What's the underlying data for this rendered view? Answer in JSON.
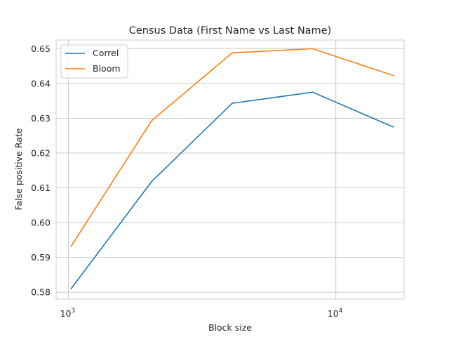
{
  "chart_data": {
    "type": "line",
    "title": "Census Data (First Name vs Last Name)",
    "xlabel": "Block size",
    "ylabel": "False positive Rate",
    "xscale": "log",
    "xlim": [
      900,
      18000
    ],
    "ylim": [
      0.578,
      0.6525
    ],
    "x_ticks": [
      {
        "value": 1000,
        "base": "10",
        "exp": "3"
      },
      {
        "value": 10000,
        "base": "10",
        "exp": "4"
      }
    ],
    "y_ticks": [
      {
        "value": 0.58,
        "label": "0.58"
      },
      {
        "value": 0.59,
        "label": "0.59"
      },
      {
        "value": 0.6,
        "label": "0.60"
      },
      {
        "value": 0.61,
        "label": "0.61"
      },
      {
        "value": 0.62,
        "label": "0.62"
      },
      {
        "value": 0.63,
        "label": "0.63"
      },
      {
        "value": 0.64,
        "label": "0.64"
      },
      {
        "value": 0.65,
        "label": "0.65"
      }
    ],
    "grid": true,
    "legend_position": "top-left",
    "x": [
      1024,
      2048,
      4096,
      8192,
      16384
    ],
    "series": [
      {
        "name": "Correl",
        "color": "#1f77b4",
        "values": [
          0.581,
          0.6118,
          0.6343,
          0.6375,
          0.6275
        ]
      },
      {
        "name": "Bloom",
        "color": "#ff7f0e",
        "values": [
          0.5932,
          0.6293,
          0.6488,
          0.65,
          0.6423
        ]
      }
    ]
  }
}
